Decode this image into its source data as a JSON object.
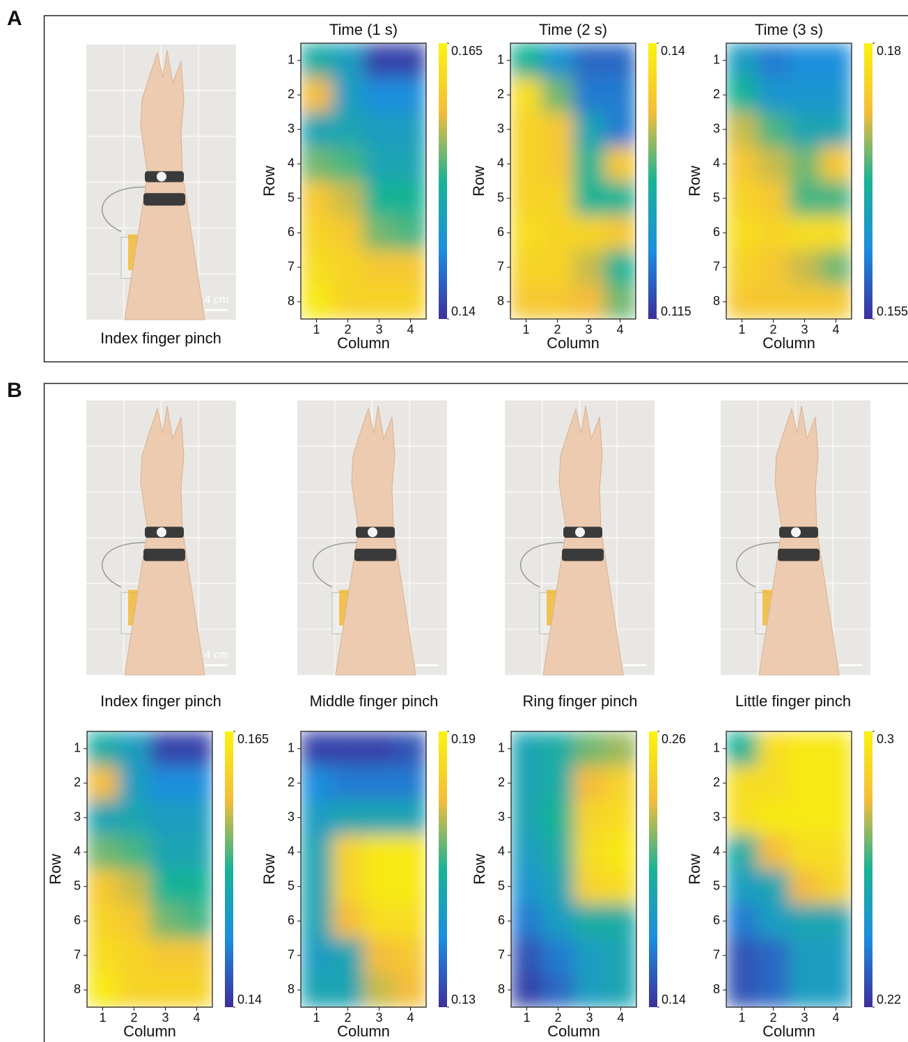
{
  "panels": [
    {
      "label": "A",
      "captions": [
        "Index finger pinch"
      ],
      "scale_label": "4 cm"
    },
    {
      "label": "B",
      "captions": [
        "Index finger pinch",
        "Middle finger pinch",
        "Ring finger pinch",
        "Little finger pinch"
      ],
      "scale_label": "4 cm"
    }
  ],
  "colormap": [
    "#3d2f9c",
    "#1c8ede",
    "#19b395",
    "#f4bd3a",
    "#f9f30f"
  ],
  "chart_data": [
    {
      "type": "heatmap",
      "title": "Time (1 s)",
      "xlabel": "Column",
      "ylabel": "Row",
      "xlim": [
        0.5,
        4.5
      ],
      "ylim": [
        0.5,
        8.5
      ],
      "y_inverted": true,
      "xticks": [
        1,
        2,
        3,
        4
      ],
      "yticks": [
        1,
        2,
        3,
        4,
        5,
        6,
        7,
        8
      ],
      "clim": [
        0.14,
        0.165
      ],
      "cticks": [
        0.14,
        0.165
      ],
      "values": [
        [
          0.1513,
          0.1488,
          0.1413,
          0.1413
        ],
        [
          0.1588,
          0.1488,
          0.1463,
          0.1463
        ],
        [
          0.15,
          0.15,
          0.1488,
          0.1488
        ],
        [
          0.155,
          0.1538,
          0.15,
          0.15
        ],
        [
          0.16,
          0.1575,
          0.1525,
          0.1525
        ],
        [
          0.1613,
          0.16,
          0.155,
          0.1538
        ],
        [
          0.1625,
          0.1613,
          0.16,
          0.16
        ],
        [
          0.1638,
          0.1613,
          0.1613,
          0.1613
        ]
      ]
    },
    {
      "type": "heatmap",
      "title": "Time (2 s)",
      "xlabel": "Column",
      "ylabel": "Row",
      "xlim": [
        0.5,
        4.5
      ],
      "ylim": [
        0.5,
        8.5
      ],
      "y_inverted": true,
      "xticks": [
        1,
        2,
        3,
        4
      ],
      "yticks": [
        1,
        2,
        3,
        4,
        5,
        6,
        7,
        8
      ],
      "clim": [
        0.115,
        0.14
      ],
      "cticks": [
        0.115,
        0.14
      ],
      "values": [
        [
          0.1275,
          0.1225,
          0.1188,
          0.1188
        ],
        [
          0.1375,
          0.13,
          0.12,
          0.12
        ],
        [
          0.1363,
          0.135,
          0.125,
          0.12
        ],
        [
          0.1363,
          0.135,
          0.1275,
          0.135
        ],
        [
          0.1363,
          0.1363,
          0.1275,
          0.1275
        ],
        [
          0.1375,
          0.1363,
          0.1363,
          0.135
        ],
        [
          0.1363,
          0.1363,
          0.1325,
          0.1275
        ],
        [
          0.135,
          0.135,
          0.1338,
          0.13
        ]
      ]
    },
    {
      "type": "heatmap",
      "title": "Time (3 s)",
      "xlabel": "Column",
      "ylabel": "Row",
      "xlim": [
        0.5,
        4.5
      ],
      "ylim": [
        0.5,
        8.5
      ],
      "y_inverted": true,
      "xticks": [
        1,
        2,
        3,
        4
      ],
      "yticks": [
        1,
        2,
        3,
        4,
        5,
        6,
        7,
        8
      ],
      "clim": [
        0.155,
        0.18
      ],
      "cticks": [
        0.155,
        0.18
      ],
      "values": [
        [
          0.1638,
          0.16,
          0.1613,
          0.1613
        ],
        [
          0.1675,
          0.1625,
          0.1625,
          0.1625
        ],
        [
          0.1725,
          0.1688,
          0.165,
          0.165
        ],
        [
          0.175,
          0.1725,
          0.17,
          0.175
        ],
        [
          0.1763,
          0.175,
          0.1688,
          0.1688
        ],
        [
          0.1775,
          0.1763,
          0.1775,
          0.1775
        ],
        [
          0.1763,
          0.175,
          0.1725,
          0.17
        ],
        [
          0.175,
          0.175,
          0.175,
          0.175
        ]
      ]
    },
    {
      "type": "heatmap",
      "xlabel": "Column",
      "ylabel": "Row",
      "xlim": [
        0.5,
        4.5
      ],
      "ylim": [
        0.5,
        8.5
      ],
      "y_inverted": true,
      "xticks": [
        1,
        2,
        3,
        4
      ],
      "yticks": [
        1,
        2,
        3,
        4,
        5,
        6,
        7,
        8
      ],
      "clim": [
        0.14,
        0.165
      ],
      "cticks": [
        0.14,
        0.165
      ],
      "values": [
        [
          0.1513,
          0.1488,
          0.1413,
          0.1413
        ],
        [
          0.1588,
          0.1488,
          0.1463,
          0.1463
        ],
        [
          0.15,
          0.15,
          0.1488,
          0.1488
        ],
        [
          0.155,
          0.1538,
          0.15,
          0.15
        ],
        [
          0.16,
          0.1575,
          0.1525,
          0.1525
        ],
        [
          0.1613,
          0.16,
          0.155,
          0.1538
        ],
        [
          0.1625,
          0.1613,
          0.16,
          0.16
        ],
        [
          0.1638,
          0.1613,
          0.1613,
          0.1613
        ]
      ]
    },
    {
      "type": "heatmap",
      "xlabel": "Column",
      "ylabel": "Row",
      "xlim": [
        0.5,
        4.5
      ],
      "ylim": [
        0.5,
        8.5
      ],
      "y_inverted": true,
      "xticks": [
        1,
        2,
        3,
        4
      ],
      "yticks": [
        1,
        2,
        3,
        4,
        5,
        6,
        7,
        8
      ],
      "clim": [
        0.13,
        0.19
      ],
      "cticks": [
        0.13,
        0.19
      ],
      "values": [
        [
          0.133,
          0.133,
          0.133,
          0.136
        ],
        [
          0.145,
          0.142,
          0.142,
          0.142
        ],
        [
          0.151,
          0.154,
          0.154,
          0.154
        ],
        [
          0.154,
          0.181,
          0.187,
          0.187
        ],
        [
          0.154,
          0.181,
          0.187,
          0.187
        ],
        [
          0.154,
          0.175,
          0.184,
          0.184
        ],
        [
          0.151,
          0.154,
          0.175,
          0.178
        ],
        [
          0.154,
          0.154,
          0.172,
          0.175
        ]
      ]
    },
    {
      "type": "heatmap",
      "xlabel": "Column",
      "ylabel": "Row",
      "xlim": [
        0.5,
        4.5
      ],
      "ylim": [
        0.5,
        8.5
      ],
      "y_inverted": true,
      "xticks": [
        1,
        2,
        3,
        4
      ],
      "yticks": [
        1,
        2,
        3,
        4,
        5,
        6,
        7,
        8
      ],
      "clim": [
        0.14,
        0.26
      ],
      "cticks": [
        0.14,
        0.26
      ],
      "values": [
        [
          0.188,
          0.194,
          0.212,
          0.218
        ],
        [
          0.188,
          0.194,
          0.23,
          0.242
        ],
        [
          0.188,
          0.2,
          0.242,
          0.248
        ],
        [
          0.182,
          0.194,
          0.248,
          0.254
        ],
        [
          0.176,
          0.188,
          0.242,
          0.248
        ],
        [
          0.164,
          0.182,
          0.194,
          0.194
        ],
        [
          0.152,
          0.164,
          0.182,
          0.188
        ],
        [
          0.146,
          0.158,
          0.182,
          0.188
        ]
      ]
    },
    {
      "type": "heatmap",
      "xlabel": "Column",
      "ylabel": "Row",
      "xlim": [
        0.5,
        4.5
      ],
      "ylim": [
        0.5,
        8.5
      ],
      "y_inverted": true,
      "xticks": [
        1,
        2,
        3,
        4
      ],
      "yticks": [
        1,
        2,
        3,
        4,
        5,
        6,
        7,
        8
      ],
      "clim": [
        0.22,
        0.3
      ],
      "cticks": [
        0.22,
        0.3
      ],
      "values": [
        [
          0.26,
          0.292,
          0.296,
          0.296
        ],
        [
          0.292,
          0.292,
          0.296,
          0.296
        ],
        [
          0.292,
          0.296,
          0.296,
          0.296
        ],
        [
          0.256,
          0.28,
          0.292,
          0.292
        ],
        [
          0.248,
          0.252,
          0.28,
          0.288
        ],
        [
          0.236,
          0.248,
          0.252,
          0.252
        ],
        [
          0.228,
          0.232,
          0.248,
          0.248
        ],
        [
          0.228,
          0.232,
          0.248,
          0.248
        ]
      ]
    }
  ]
}
